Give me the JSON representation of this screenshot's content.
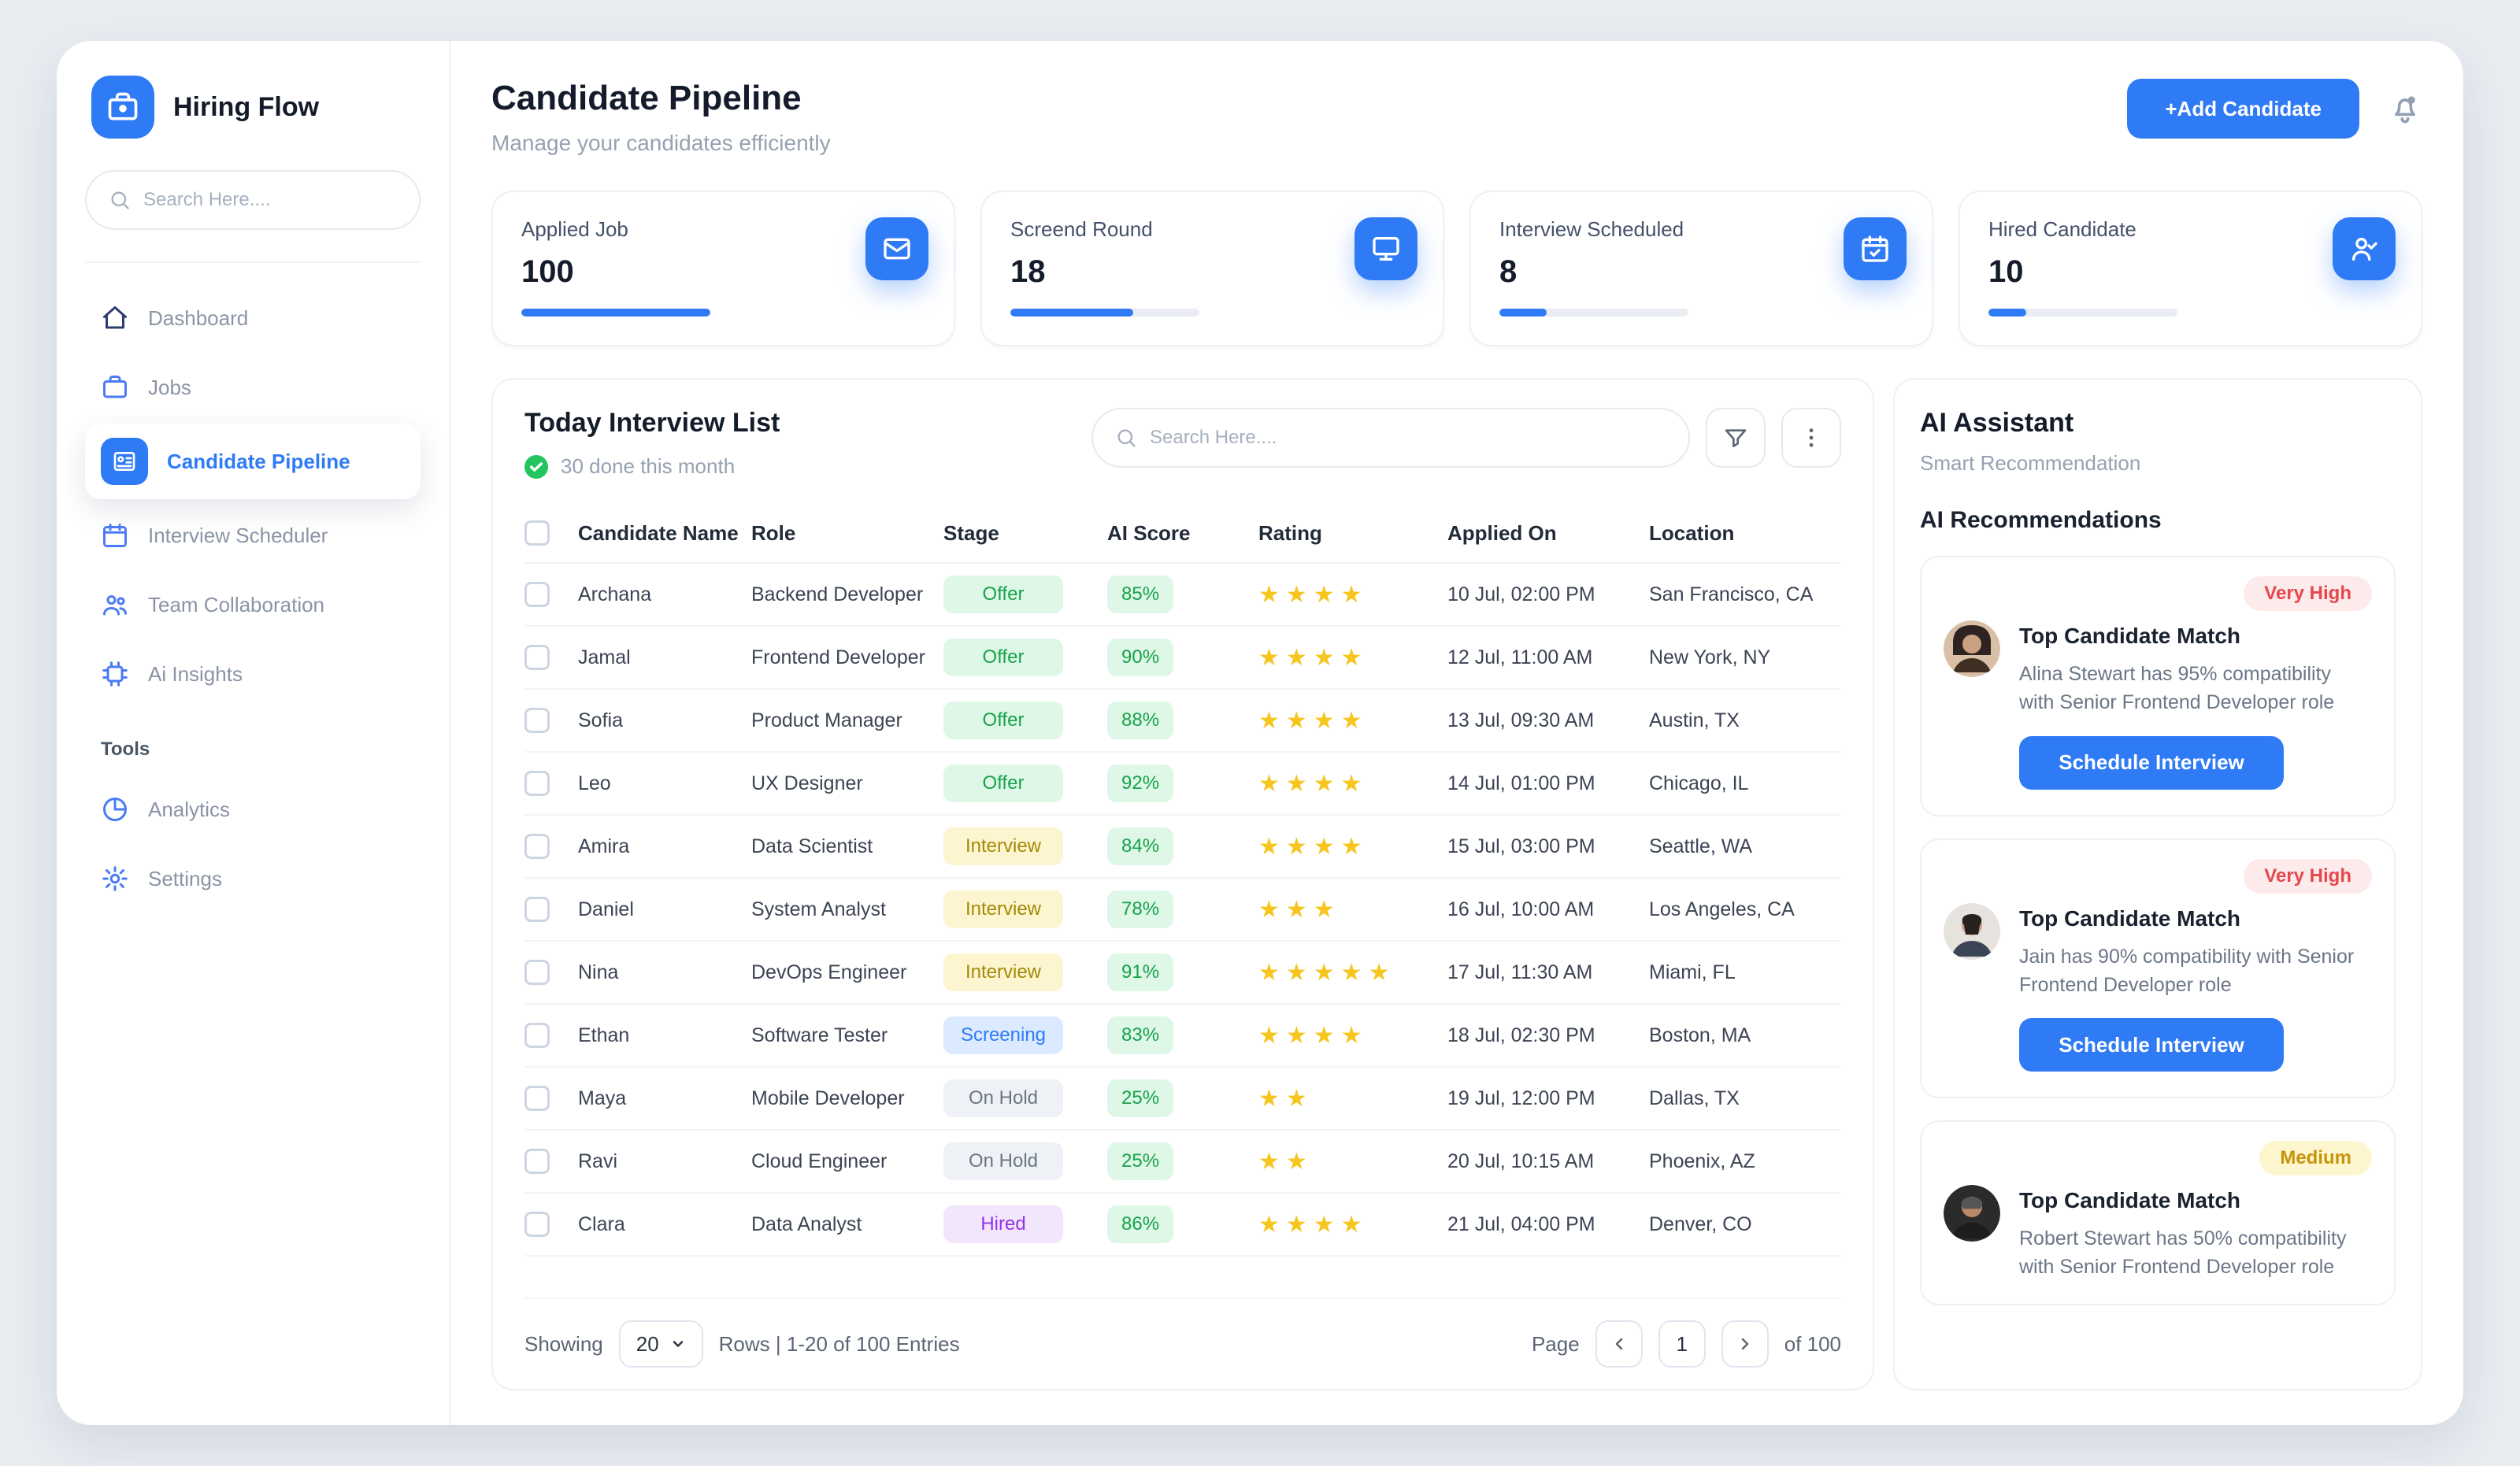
{
  "app": {
    "name": "Hiring Flow"
  },
  "sidebar": {
    "search_placeholder": "Search Here....",
    "items": [
      {
        "label": "Dashboard",
        "icon": "home-icon",
        "active": false
      },
      {
        "label": "Jobs",
        "icon": "briefcase-icon",
        "active": false
      },
      {
        "label": "Candidate Pipeline",
        "icon": "pipeline-icon",
        "active": true
      },
      {
        "label": "Interview Scheduler",
        "icon": "calendar-icon",
        "active": false
      },
      {
        "label": "Team Collaboration",
        "icon": "team-icon",
        "active": false
      },
      {
        "label": "Ai Insights",
        "icon": "ai-insights-icon",
        "active": false
      }
    ],
    "tools_label": "Tools",
    "tools": [
      {
        "label": "Analytics",
        "icon": "analytics-icon"
      },
      {
        "label": "Settings",
        "icon": "settings-icon"
      }
    ]
  },
  "header": {
    "title": "Candidate Pipeline",
    "subtitle": "Manage your candidates efficiently",
    "add_button": "+Add Candidate"
  },
  "stats": [
    {
      "label": "Applied Job",
      "value": "100",
      "icon": "mail-icon",
      "progress": 100
    },
    {
      "label": "Screend Round",
      "value": "18",
      "icon": "screen-icon",
      "progress": 65
    },
    {
      "label": "Interview Scheduled",
      "value": "8",
      "icon": "calendar-check-icon",
      "progress": 25
    },
    {
      "label": "Hired Candidate",
      "value": "10",
      "icon": "hired-person-icon",
      "progress": 20
    }
  ],
  "table": {
    "title": "Today Interview List",
    "status": "30 done this month",
    "search_placeholder": "Search Here....",
    "columns": [
      "Candidate Name",
      "Role",
      "Stage",
      "AI Score",
      "Rating",
      "Applied On",
      "Location"
    ],
    "rows": [
      {
        "name": "Archana",
        "role": "Backend Developer",
        "stage": "Offer",
        "score": "85%",
        "stars": 4,
        "applied": "10 Jul, 02:00 PM",
        "location": "San Francisco, CA"
      },
      {
        "name": "Jamal",
        "role": "Frontend Developer",
        "stage": "Offer",
        "score": "90%",
        "stars": 4,
        "applied": "12 Jul, 11:00 AM",
        "location": "New York, NY"
      },
      {
        "name": "Sofia",
        "role": "Product Manager",
        "stage": "Offer",
        "score": "88%",
        "stars": 4,
        "applied": "13 Jul, 09:30 AM",
        "location": "Austin, TX"
      },
      {
        "name": "Leo",
        "role": "UX Designer",
        "stage": "Offer",
        "score": "92%",
        "stars": 4,
        "applied": "14 Jul, 01:00 PM",
        "location": "Chicago, IL"
      },
      {
        "name": "Amira",
        "role": "Data Scientist",
        "stage": "Interview",
        "score": "84%",
        "stars": 4,
        "applied": "15 Jul, 03:00 PM",
        "location": "Seattle, WA"
      },
      {
        "name": "Daniel",
        "role": "System Analyst",
        "stage": "Interview",
        "score": "78%",
        "stars": 3,
        "applied": "16 Jul, 10:00 AM",
        "location": "Los Angeles, CA"
      },
      {
        "name": "Nina",
        "role": "DevOps Engineer",
        "stage": "Interview",
        "score": "91%",
        "stars": 5,
        "applied": "17 Jul, 11:30 AM",
        "location": "Miami, FL"
      },
      {
        "name": "Ethan",
        "role": "Software Tester",
        "stage": "Screening",
        "score": "83%",
        "stars": 4,
        "applied": "18 Jul, 02:30 PM",
        "location": "Boston, MA"
      },
      {
        "name": "Maya",
        "role": "Mobile Developer",
        "stage": "On Hold",
        "score": "25%",
        "stars": 2,
        "applied": "19 Jul, 12:00 PM",
        "location": "Dallas, TX"
      },
      {
        "name": "Ravi",
        "role": "Cloud Engineer",
        "stage": "On Hold",
        "score": "25%",
        "stars": 2,
        "applied": "20 Jul, 10:15 AM",
        "location": "Phoenix, AZ"
      },
      {
        "name": "Clara",
        "role": "Data Analyst",
        "stage": "Hired",
        "score": "86%",
        "stars": 4,
        "applied": "21 Jul, 04:00 PM",
        "location": "Denver, CO"
      }
    ]
  },
  "pagination": {
    "showing_label": "Showing",
    "rows_per_page": "20",
    "rows_label": "Rows | 1-20 of 100 Entries",
    "page_label": "Page",
    "current_page": "1",
    "of_label": "of 100"
  },
  "assistant": {
    "title": "AI Assistant",
    "subtitle": "Smart Recommendation",
    "section_title": "AI Recommendations",
    "cards": [
      {
        "badge": "Very High",
        "title": "Top Candidate Match",
        "body": "Alina Stewart has 95% compatibility with Senior Frontend Developer role",
        "button": "Schedule Interview"
      },
      {
        "badge": "Very High",
        "title": "Top Candidate Match",
        "body": "Jain has 90% compatibility with Senior Frontend Developer role",
        "button": "Schedule Interview"
      },
      {
        "badge": "Medium",
        "title": "Top Candidate Match",
        "body": "Robert Stewart has 50% compatibility with Senior Frontend Developer role",
        "button": null
      }
    ]
  },
  "colors": {
    "accent": "#2f7bf6",
    "offer_green": "#17a34a",
    "interview_yellow": "#a38908",
    "screening_blue": "#2f7bf6",
    "on_hold_gray": "#6b7686",
    "hired_purple": "#9333ea",
    "very_high_red": "#e5484d",
    "medium_yellow": "#c8940a",
    "star_yellow": "#f6c51e",
    "success_green": "#22c55e"
  }
}
